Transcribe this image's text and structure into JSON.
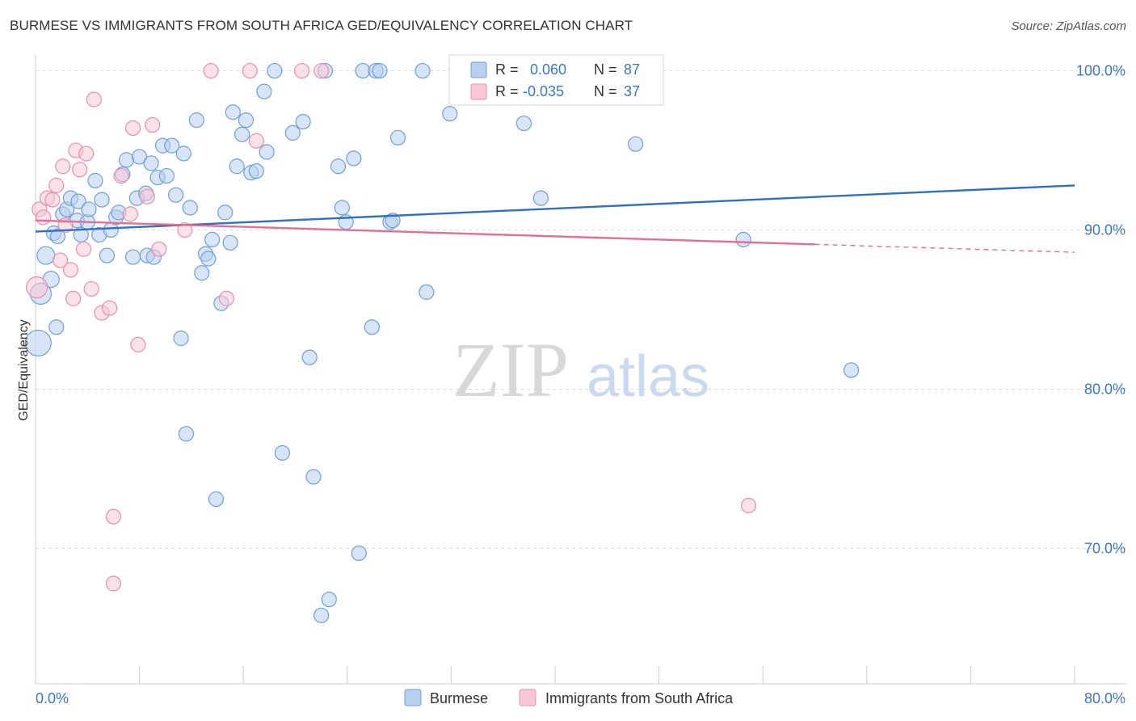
{
  "title": "BURMESE VS IMMIGRANTS FROM SOUTH AFRICA GED/EQUIVALENCY CORRELATION CHART",
  "source": "Source: ZipAtlas.com",
  "watermark": {
    "zip": "ZIP",
    "atlas": "atlas"
  },
  "colors": {
    "burmese_fill": "#b8d0f0",
    "burmese_stroke": "#6f9fd8",
    "burmese_line": "#2f6fc4",
    "sa_fill": "#f8c8d6",
    "sa_stroke": "#e890ab",
    "sa_line": "#e36e96",
    "tick_label": "#3d77c4",
    "grid": "#dddddd"
  },
  "legend": {
    "rows": [
      {
        "r_label": "R =",
        "r_value": "0.060",
        "n_label": "N =",
        "n_value": "87"
      },
      {
        "r_label": "R =",
        "r_value": "-0.035",
        "n_label": "N =",
        "n_value": "37"
      }
    ]
  },
  "chart_data": {
    "type": "scatter",
    "title": "BURMESE VS IMMIGRANTS FROM SOUTH AFRICA GED/EQUIVALENCY CORRELATION CHART",
    "ylabel": "GED/Equivalency",
    "xlim": [
      0,
      80
    ],
    "ylim": [
      61.5,
      101.5
    ],
    "x_tick_labels": [
      {
        "value": 0,
        "label": "0.0%"
      },
      {
        "value": 80,
        "label": "80.0%"
      }
    ],
    "y_tick_labels": [
      {
        "value": 100,
        "label": "100.0%"
      },
      {
        "value": 90,
        "label": "90.0%"
      },
      {
        "value": 80,
        "label": "80.0%"
      },
      {
        "value": 70,
        "label": "70.0%"
      }
    ],
    "grid": "horizontal-dashed",
    "legend_position": "top-center",
    "series": [
      {
        "name": "Burmese",
        "trend": {
          "x0": 0,
          "y0": 89.9,
          "x1": 80,
          "y1": 92.8
        },
        "points": [
          [
            0.2,
            82.9,
            16
          ],
          [
            0.4,
            86.0,
            13
          ],
          [
            0.8,
            88.4,
            11
          ],
          [
            1.2,
            86.9,
            10
          ],
          [
            1.4,
            89.8,
            9
          ],
          [
            1.6,
            83.9,
            9
          ],
          [
            1.7,
            89.6,
            9
          ],
          [
            2.1,
            91.0,
            9
          ],
          [
            2.4,
            91.3,
            9
          ],
          [
            2.7,
            92.0,
            9
          ],
          [
            3.2,
            90.6,
            9
          ],
          [
            3.3,
            91.8,
            9
          ],
          [
            3.5,
            89.7,
            9
          ],
          [
            4.0,
            90.5,
            9
          ],
          [
            4.1,
            91.3,
            9
          ],
          [
            4.6,
            93.1,
            9
          ],
          [
            4.9,
            89.7,
            9
          ],
          [
            5.1,
            91.9,
            9
          ],
          [
            5.5,
            88.4,
            9
          ],
          [
            5.8,
            90.0,
            9
          ],
          [
            6.2,
            90.8,
            9
          ],
          [
            6.4,
            91.1,
            9
          ],
          [
            6.7,
            93.5,
            9
          ],
          [
            7.0,
            94.4,
            9
          ],
          [
            7.5,
            88.3,
            9
          ],
          [
            7.8,
            92.0,
            9
          ],
          [
            8.0,
            94.6,
            9
          ],
          [
            8.5,
            92.3,
            9
          ],
          [
            8.6,
            88.4,
            9
          ],
          [
            8.9,
            94.2,
            9
          ],
          [
            9.1,
            88.3,
            9
          ],
          [
            9.4,
            93.3,
            9
          ],
          [
            9.8,
            95.3,
            9
          ],
          [
            10.1,
            93.4,
            9
          ],
          [
            10.5,
            95.3,
            9
          ],
          [
            10.8,
            92.2,
            9
          ],
          [
            11.2,
            83.2,
            9
          ],
          [
            11.4,
            94.8,
            9
          ],
          [
            11.6,
            77.2,
            9
          ],
          [
            11.9,
            91.4,
            9
          ],
          [
            12.4,
            96.9,
            9
          ],
          [
            12.8,
            87.3,
            9
          ],
          [
            13.1,
            88.5,
            9
          ],
          [
            13.3,
            88.2,
            9
          ],
          [
            13.6,
            89.4,
            9
          ],
          [
            13.9,
            73.1,
            9
          ],
          [
            14.3,
            85.4,
            9
          ],
          [
            14.6,
            91.1,
            9
          ],
          [
            15.0,
            89.2,
            9
          ],
          [
            15.2,
            97.4,
            9
          ],
          [
            15.5,
            94.0,
            9
          ],
          [
            15.9,
            96.0,
            9
          ],
          [
            16.2,
            96.9,
            9
          ],
          [
            16.6,
            93.6,
            9
          ],
          [
            17.0,
            93.7,
            9
          ],
          [
            17.6,
            98.7,
            9
          ],
          [
            17.8,
            94.9,
            9
          ],
          [
            18.4,
            100.0,
            9
          ],
          [
            19.0,
            76.0,
            9
          ],
          [
            19.8,
            96.1,
            9
          ],
          [
            20.6,
            96.8,
            9
          ],
          [
            21.1,
            82.0,
            9
          ],
          [
            21.4,
            74.5,
            9
          ],
          [
            22.0,
            65.8,
            9
          ],
          [
            22.3,
            100.0,
            9
          ],
          [
            22.6,
            66.8,
            9
          ],
          [
            23.3,
            94.0,
            9
          ],
          [
            23.6,
            91.4,
            9
          ],
          [
            23.9,
            90.5,
            9
          ],
          [
            24.5,
            94.5,
            9
          ],
          [
            24.9,
            69.7,
            9
          ],
          [
            25.2,
            100.0,
            9
          ],
          [
            25.9,
            83.9,
            9
          ],
          [
            26.2,
            100.0,
            9
          ],
          [
            26.5,
            100.0,
            9
          ],
          [
            27.3,
            90.5,
            9
          ],
          [
            27.5,
            90.6,
            9
          ],
          [
            27.9,
            95.8,
            9
          ],
          [
            29.8,
            100.0,
            9
          ],
          [
            30.1,
            86.1,
            9
          ],
          [
            31.9,
            97.3,
            9
          ],
          [
            32.4,
            100.0,
            9
          ],
          [
            37.6,
            96.7,
            9
          ],
          [
            38.9,
            92.0,
            9
          ],
          [
            46.2,
            95.4,
            9
          ],
          [
            54.5,
            89.4,
            9
          ],
          [
            62.8,
            81.2,
            9
          ]
        ]
      },
      {
        "name": "Immigrants from South Africa",
        "trend": {
          "x0": 0,
          "y0": 90.6,
          "x1": 80,
          "y1": 88.6,
          "solid_until": 60
        },
        "points": [
          [
            0.1,
            86.4,
            13
          ],
          [
            0.3,
            91.3,
            9
          ],
          [
            0.6,
            90.8,
            9
          ],
          [
            0.9,
            92.0,
            9
          ],
          [
            1.3,
            91.9,
            9
          ],
          [
            1.6,
            92.8,
            9
          ],
          [
            1.9,
            88.1,
            9
          ],
          [
            2.1,
            94.0,
            9
          ],
          [
            2.3,
            90.3,
            9
          ],
          [
            2.7,
            87.5,
            9
          ],
          [
            2.9,
            85.7,
            9
          ],
          [
            3.1,
            95.0,
            9
          ],
          [
            3.4,
            93.8,
            9
          ],
          [
            3.7,
            88.8,
            9
          ],
          [
            3.9,
            94.8,
            9
          ],
          [
            4.3,
            86.3,
            9
          ],
          [
            4.5,
            98.2,
            9
          ],
          [
            5.1,
            84.8,
            9
          ],
          [
            5.7,
            85.1,
            9
          ],
          [
            6.0,
            72.0,
            9
          ],
          [
            6.0,
            67.8,
            9
          ],
          [
            6.6,
            93.4,
            9
          ],
          [
            7.3,
            91.0,
            9
          ],
          [
            7.5,
            96.4,
            9
          ],
          [
            7.9,
            82.8,
            9
          ],
          [
            8.6,
            92.1,
            9
          ],
          [
            9.0,
            96.6,
            9
          ],
          [
            9.5,
            88.8,
            9
          ],
          [
            11.5,
            90.0,
            9
          ],
          [
            13.5,
            100.0,
            9
          ],
          [
            14.7,
            85.7,
            9
          ],
          [
            16.5,
            100.0,
            9
          ],
          [
            17.0,
            95.6,
            9
          ],
          [
            20.5,
            100.0,
            9
          ],
          [
            22.0,
            100.0,
            9
          ],
          [
            32.5,
            100.0,
            9
          ],
          [
            54.9,
            72.7,
            9
          ]
        ]
      }
    ]
  }
}
